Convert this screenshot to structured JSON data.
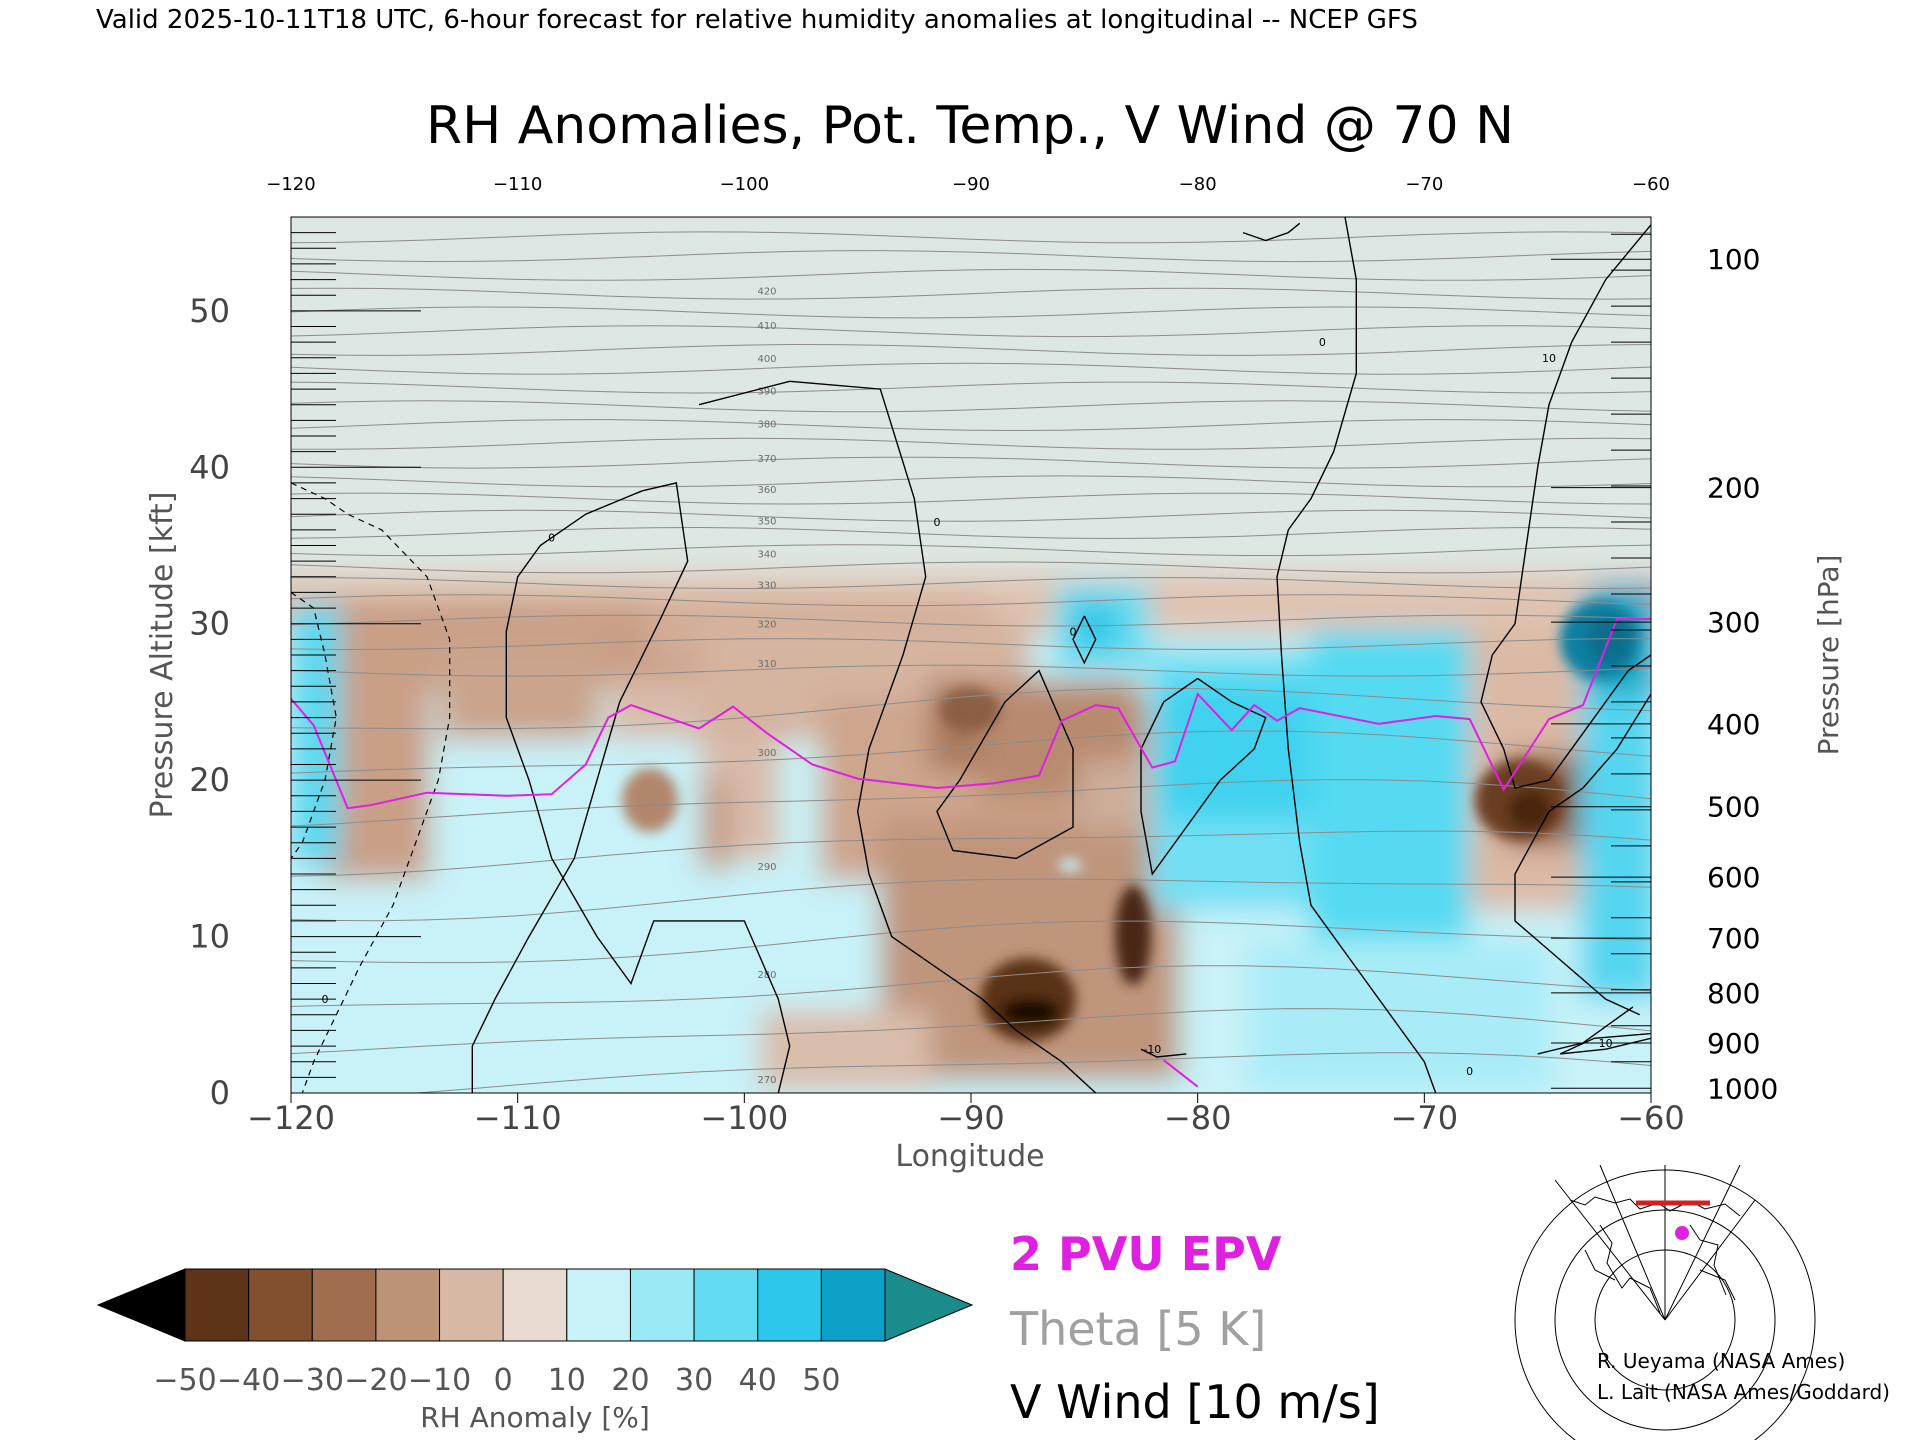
{
  "header": "Valid 2025-10-11T18 UTC, 6-hour forecast for relative humidity anomalies at longitudinal -- NCEP GFS",
  "colors": {
    "pvu_line": "#e020e0",
    "theta": "#8c8c8c",
    "vwind": "#000000",
    "plot_bg": "#dde8e4",
    "ocean_teal": "#1a8c8c"
  },
  "chart_data": {
    "type": "heatmap",
    "title": "RH Anomalies, Pot. Temp., V Wind @ 70 N",
    "xlabel": "Longitude",
    "ylabel_left": "Pressure Altitude [kft]",
    "ylabel_right": "Pressure [hPa]",
    "xlim": [
      -120,
      -60
    ],
    "ylim": [
      0,
      56
    ],
    "x_ticks": [
      -120,
      -110,
      -100,
      -90,
      -80,
      -70,
      -60
    ],
    "y_ticks": [
      0,
      10,
      20,
      30,
      40,
      50
    ],
    "pressure_ticks": [
      {
        "label": "100",
        "kft": 53.3
      },
      {
        "label": "200",
        "kft": 38.7
      },
      {
        "label": "300",
        "kft": 30.1
      },
      {
        "label": "400",
        "kft": 23.6
      },
      {
        "label": "500",
        "kft": 18.3
      },
      {
        "label": "600",
        "kft": 13.8
      },
      {
        "label": "700",
        "kft": 9.9
      },
      {
        "label": "800",
        "kft": 6.4
      },
      {
        "label": "900",
        "kft": 3.2
      },
      {
        "label": "1000",
        "kft": 0.3
      }
    ],
    "colorbar": {
      "label": "RH Anomaly [%]",
      "ticks": [
        "-50",
        "-40",
        "-30",
        "-20",
        "-10",
        "0",
        "10",
        "20",
        "30",
        "40",
        "50"
      ],
      "colors": [
        "#33190a",
        "#5e3318",
        "#82502f",
        "#a06e4f",
        "#bd9378",
        "#d6b8a5",
        "#eadbd2",
        "#c8f2f8",
        "#9aeaf6",
        "#63dcf2",
        "#2cc7ea",
        "#0da0c6",
        "#087a9c"
      ]
    },
    "pvu_line": {
      "name": "2 PVU EPV",
      "points": [
        [
          -120,
          25.2
        ],
        [
          -119,
          23.5
        ],
        [
          -117.5,
          18.2
        ],
        [
          -116.5,
          18.4
        ],
        [
          -114,
          19.2
        ],
        [
          -110.5,
          19.0
        ],
        [
          -108.5,
          19.1
        ],
        [
          -107,
          21.0
        ],
        [
          -106,
          24.0
        ],
        [
          -105,
          24.8
        ],
        [
          -102,
          23.3
        ],
        [
          -100.5,
          24.7
        ],
        [
          -99,
          23.0
        ],
        [
          -97,
          21.0
        ],
        [
          -95,
          20.1
        ],
        [
          -91.5,
          19.5
        ],
        [
          -89,
          19.8
        ],
        [
          -87,
          20.3
        ],
        [
          -86,
          23.8
        ],
        [
          -84.5,
          24.8
        ],
        [
          -83.5,
          24.6
        ],
        [
          -82,
          20.8
        ],
        [
          -81,
          21.2
        ],
        [
          -80,
          25.5
        ],
        [
          -78.5,
          23.2
        ],
        [
          -77.5,
          24.8
        ],
        [
          -76.5,
          23.8
        ],
        [
          -75.5,
          24.6
        ],
        [
          -72,
          23.6
        ],
        [
          -69.5,
          24.1
        ],
        [
          -68,
          23.9
        ],
        [
          -66.5,
          19.4
        ],
        [
          -64.5,
          23.9
        ],
        [
          -63,
          24.8
        ],
        [
          -61.5,
          30.3
        ],
        [
          -60,
          30.3
        ]
      ]
    },
    "pvu_stub": [
      [
        -81.5,
        2.1
      ],
      [
        -80,
        0.4
      ]
    ],
    "theta": {
      "name": "Theta [5 K]",
      "labels": [
        "270",
        "280",
        "290",
        "300",
        "310",
        "320",
        "330",
        "340",
        "350",
        "360",
        "370",
        "380",
        "390",
        "400",
        "410",
        "420"
      ]
    },
    "vwind": {
      "name": "V Wind [10 m/s]",
      "contour_labels": [
        "0",
        "10",
        "-10"
      ]
    },
    "legend": [
      "2 PVU EPV",
      "Theta [5 K]",
      "V Wind [10 m/s]"
    ]
  },
  "credits": [
    "R. Ueyama (NASA Ames)",
    "L. Lait (NASA Ames/Goddard)"
  ]
}
